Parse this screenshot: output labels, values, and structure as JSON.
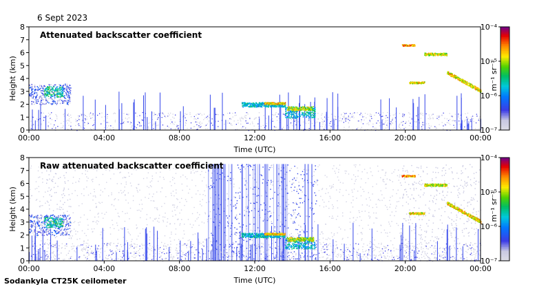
{
  "header": {
    "date": "6 Sept 2023"
  },
  "footer": {
    "instrument": "Sodankyla CT25K ceilometer"
  },
  "chart_data": [
    {
      "type": "heatmap",
      "title": "Attenuated backscatter coefficient",
      "xlabel": "Time (UTC)",
      "ylabel": "Height (km)",
      "x_ticks": [
        "00:00",
        "04:00",
        "08:00",
        "12:00",
        "16:00",
        "20:00",
        "00:00"
      ],
      "xlim_hours": [
        0,
        24
      ],
      "y_ticks": [
        0,
        1,
        2,
        3,
        4,
        5,
        6,
        7,
        8
      ],
      "ylim": [
        0,
        8
      ],
      "colorbar": {
        "label": "m⁻¹ sr⁻¹",
        "scale": "log",
        "range": [
          1e-07,
          0.0001
        ],
        "tick_labels": [
          "10⁻⁴",
          "10⁻⁵",
          "10⁻⁶",
          "10⁻⁷"
        ]
      }
    },
    {
      "type": "heatmap",
      "title": "Raw attenuated backscatter coefficient",
      "xlabel": "Time (UTC)",
      "ylabel": "Height (km)",
      "x_ticks": [
        "00:00",
        "04:00",
        "08:00",
        "12:00",
        "16:00",
        "20:00",
        "00:00"
      ],
      "xlim_hours": [
        0,
        24
      ],
      "y_ticks": [
        0,
        1,
        2,
        3,
        4,
        5,
        6,
        7,
        8
      ],
      "ylim": [
        0,
        8
      ],
      "colorbar": {
        "label": "m⁻¹ sr⁻¹",
        "scale": "log",
        "range": [
          1e-07,
          0.0001
        ],
        "tick_labels": [
          "10⁻⁴",
          "10⁻⁵",
          "10⁻⁶",
          "10⁻⁷"
        ]
      }
    }
  ]
}
